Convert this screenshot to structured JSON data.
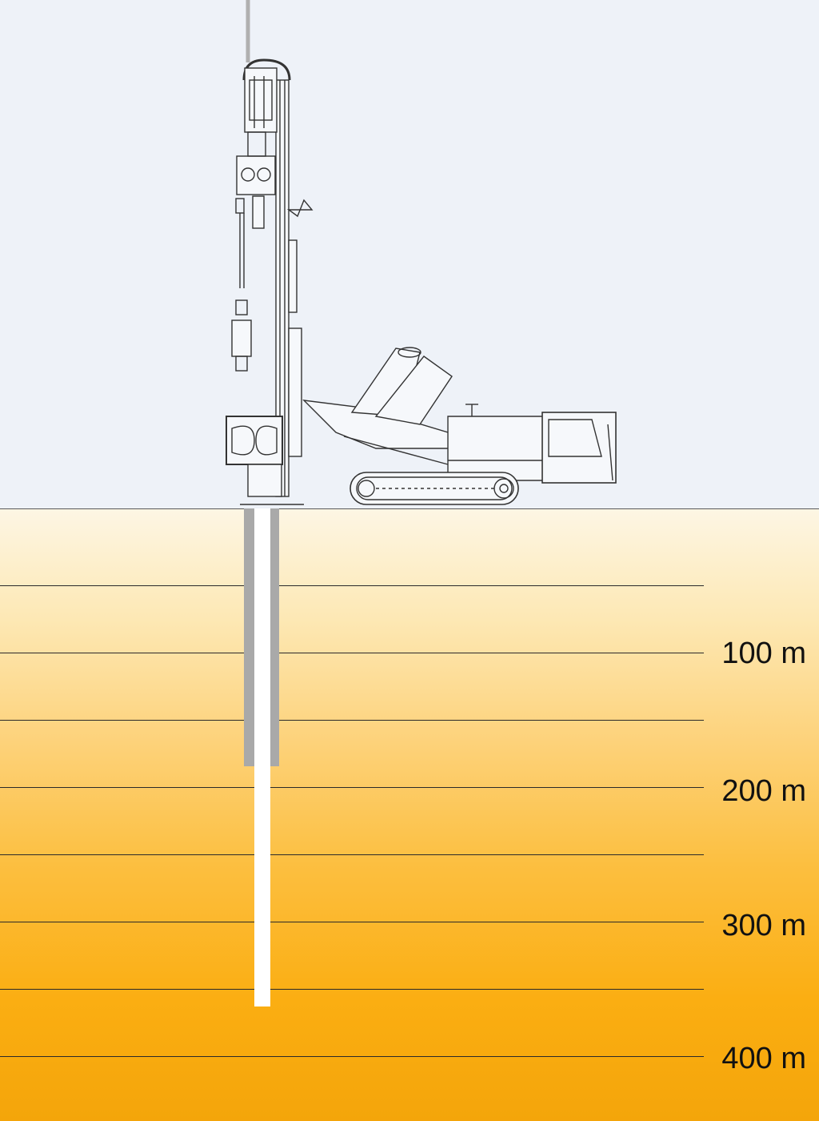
{
  "depth_labels": [
    "100 m",
    "200 m",
    "300 m",
    "400 m"
  ],
  "colors": {
    "sky": "#eef2f8",
    "ground_top": "#fdf6e4",
    "ground_bottom": "#f4a50a",
    "casing": "#a9a9a9",
    "borehole": "#ffffff",
    "line": "#2a2a2a"
  },
  "icons": {
    "drill_rig": "drill-rig-icon",
    "crawler_track": "crawler-track-icon",
    "cab": "cab-icon"
  }
}
